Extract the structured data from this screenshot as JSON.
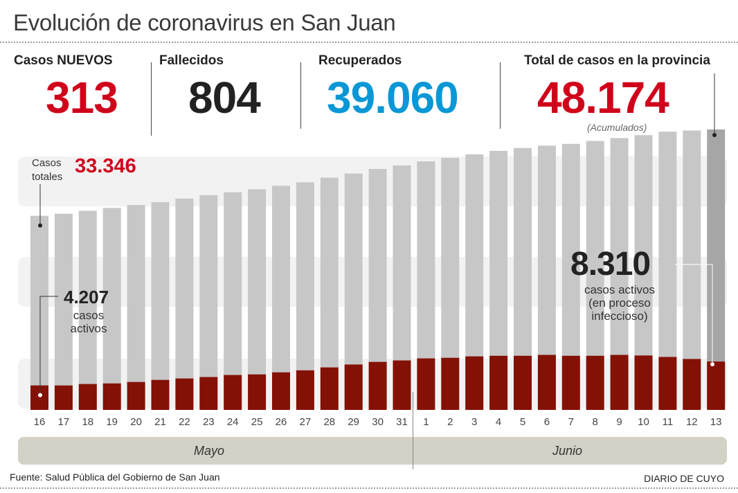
{
  "title": "Evolución de coronavirus en San Juan",
  "stats": [
    {
      "label": "Casos NUEVOS",
      "value": "313",
      "color": "#d0021b"
    },
    {
      "label": "Fallecidos",
      "value": "804",
      "color": "#222222"
    },
    {
      "label": "Recuperados",
      "value": "39.060",
      "color": "#0a97d6"
    },
    {
      "label": "Total de casos en la provincia",
      "value": "48.174",
      "color": "#d0021b",
      "note": "(Acumulados)"
    }
  ],
  "annotations": {
    "start_total_label_line1": "Casos",
    "start_total_label_line2": "totales",
    "start_total_value": "33.346",
    "start_active_value": "4.207",
    "start_active_line1": "casos",
    "start_active_line2": "activos",
    "end_active_value": "8.310",
    "end_active_line1": "casos activos",
    "end_active_line2": "(en proceso",
    "end_active_line3": "infeccioso)"
  },
  "months": {
    "may": "Mayo",
    "june": "Junio"
  },
  "source": "Fuente: Salud Pública del Gobierno de San Juan",
  "brand": "DIARIO DE CUYO",
  "colors": {
    "total_bar": "#c7c7c7",
    "total_bar_last": "#a6a6a6",
    "active_bar": "#841105",
    "band": "#f2f2f2",
    "accent_red": "#d0021b",
    "accent_blue": "#0a97d6"
  },
  "chart_data": {
    "type": "bar",
    "title": "Evolución de coronavirus en San Juan",
    "xlabel": "",
    "ylabel": "",
    "categories": [
      "16",
      "17",
      "18",
      "19",
      "20",
      "21",
      "22",
      "23",
      "24",
      "25",
      "26",
      "27",
      "28",
      "29",
      "30",
      "31",
      "1",
      "2",
      "3",
      "4",
      "5",
      "6",
      "7",
      "8",
      "9",
      "10",
      "11",
      "12",
      "13"
    ],
    "category_groups": [
      {
        "label": "Mayo",
        "from": "16",
        "to": "31"
      },
      {
        "label": "Junio",
        "from": "1",
        "to": "13"
      }
    ],
    "values_note": "Only the first and last points of each series are printed in the source image (33.346, 48.174, 4.207, 8.310). All intermediate values are approximate reconstructions estimated from bar heights and are NOT figures published by the source.",
    "series": [
      {
        "name": "Casos totales",
        "values_are_estimates": true,
        "labeled_points": {
          "first": 33346,
          "last": 48174
        },
        "values": [
          33346,
          33700,
          34200,
          34700,
          35200,
          35700,
          36300,
          36900,
          37400,
          37900,
          38500,
          39100,
          39900,
          40600,
          41400,
          42000,
          42700,
          43300,
          43900,
          44500,
          45000,
          45400,
          45700,
          46200,
          46700,
          47200,
          47800,
          48000,
          48174
        ]
      },
      {
        "name": "Casos activos",
        "values_are_estimates": true,
        "labeled_points": {
          "first": 4207,
          "last": 8310
        },
        "values": [
          4207,
          4200,
          4450,
          4550,
          4800,
          5150,
          5400,
          5650,
          6000,
          6100,
          6450,
          6800,
          7300,
          7800,
          8250,
          8500,
          8850,
          8950,
          9200,
          9300,
          9300,
          9450,
          9300,
          9300,
          9450,
          9350,
          9100,
          8750,
          8310
        ]
      }
    ],
    "ylim": [
      0,
      49000
    ],
    "grid": false,
    "legend": "none"
  }
}
